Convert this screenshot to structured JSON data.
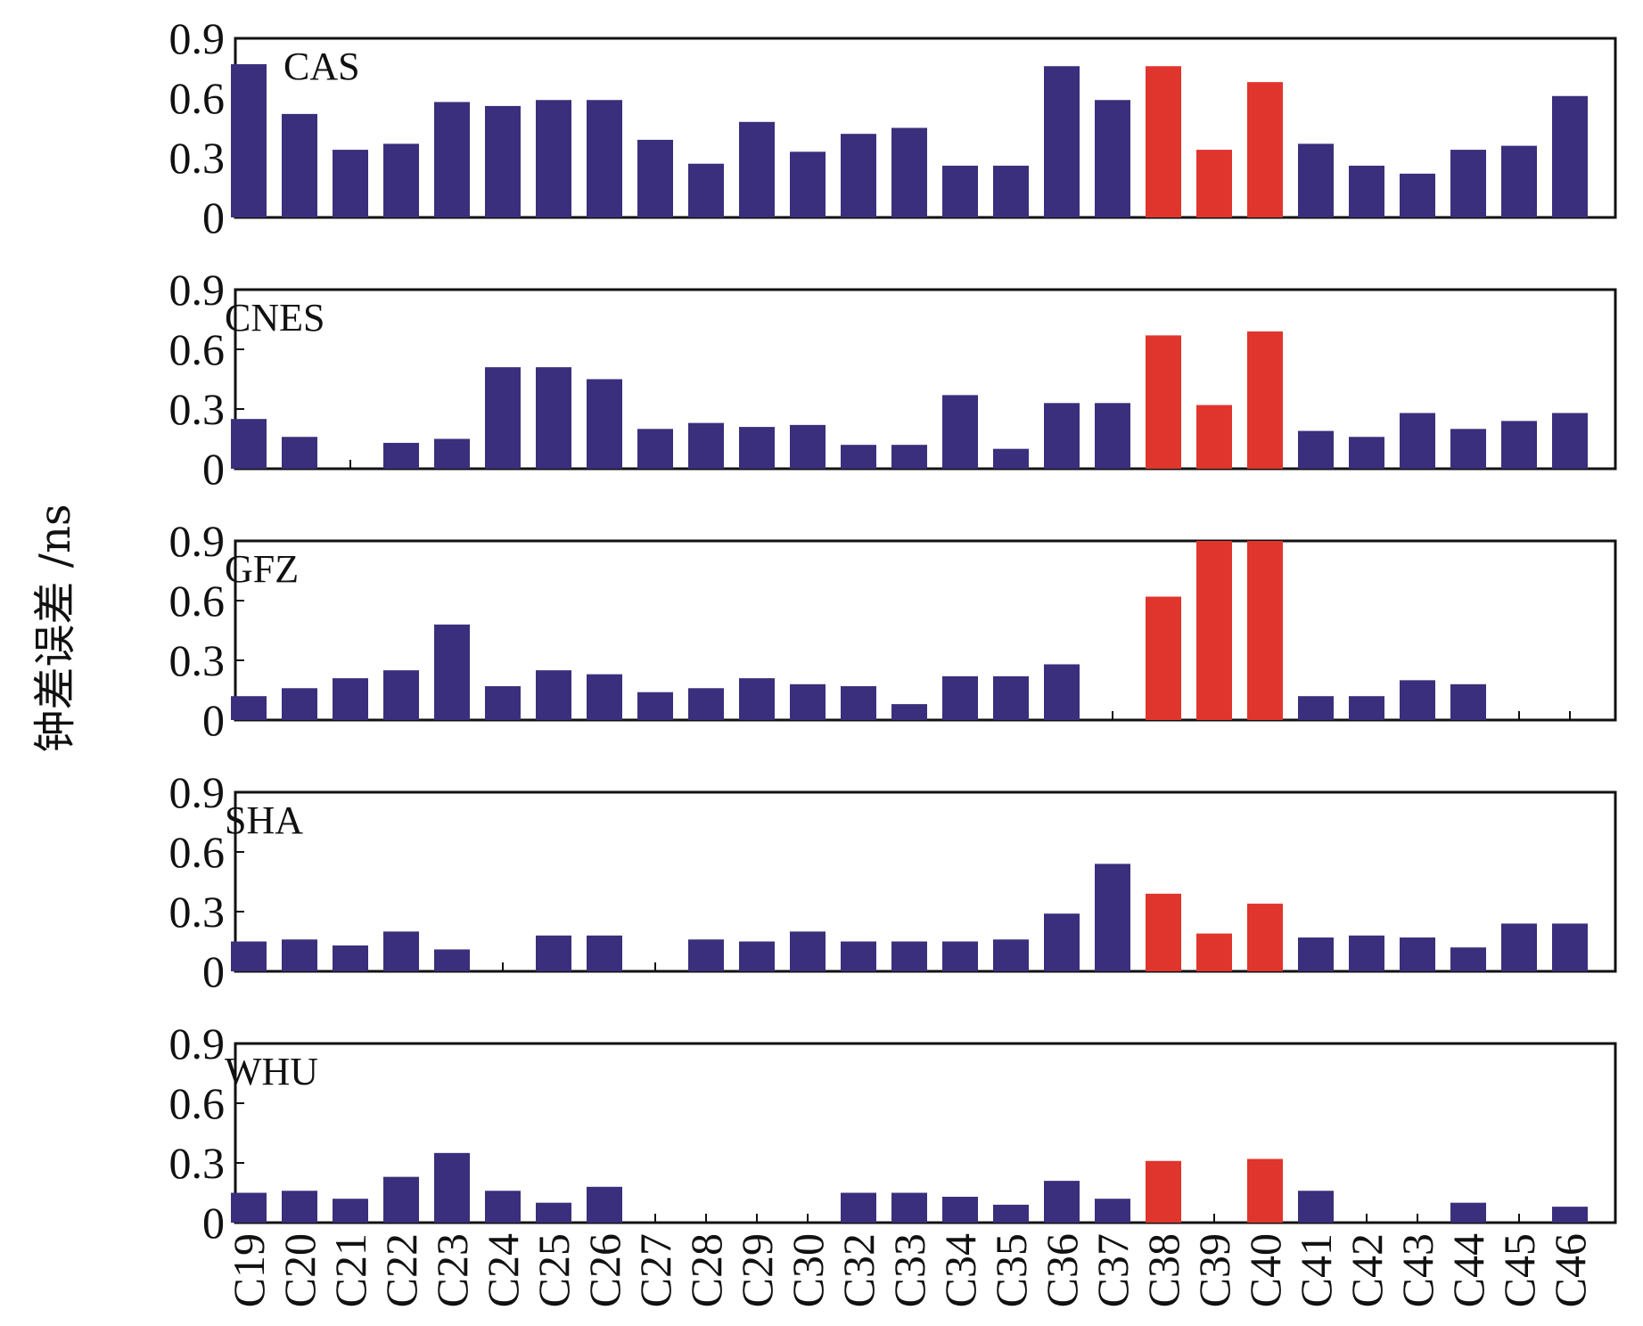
{
  "chart_data": {
    "type": "bar",
    "ylabel": "钟差误差 /ns",
    "ylim": [
      0,
      0.9
    ],
    "yticks": [
      "0",
      "0.3",
      "0.6",
      "0.9"
    ],
    "colors": {
      "normal": "#3a2f7c",
      "highlight": "#e0352d"
    },
    "highlight_categories": [
      "C38",
      "C39",
      "C40"
    ],
    "categories": [
      "C19",
      "C20",
      "C21",
      "C22",
      "C23",
      "C24",
      "C25",
      "C26",
      "C27",
      "C28",
      "C29",
      "C30",
      "C32",
      "C33",
      "C34",
      "C35",
      "C36",
      "C37",
      "C38",
      "C39",
      "C40",
      "C41",
      "C42",
      "C43",
      "C44",
      "C45",
      "C46"
    ],
    "panels": [
      {
        "name": "CAS",
        "values": [
          0.77,
          0.52,
          0.34,
          0.37,
          0.58,
          0.56,
          0.59,
          0.59,
          0.39,
          0.27,
          0.48,
          0.33,
          0.42,
          0.45,
          0.26,
          0.26,
          0.76,
          0.59,
          0.76,
          0.34,
          0.68,
          0.37,
          0.26,
          0.22,
          0.34,
          0.36,
          0.61
        ]
      },
      {
        "name": "CNES",
        "values": [
          0.25,
          0.16,
          0,
          0.13,
          0.15,
          0.51,
          0.51,
          0.45,
          0.2,
          0.23,
          0.21,
          0.22,
          0.12,
          0.12,
          0.37,
          0.1,
          0.33,
          0.33,
          0.67,
          0.32,
          0.69,
          0.19,
          0.16,
          0.28,
          0.2,
          0.24,
          0.28
        ]
      },
      {
        "name": "GFZ",
        "values": [
          0.12,
          0.16,
          0.21,
          0.25,
          0.48,
          0.17,
          0.25,
          0.23,
          0.14,
          0.16,
          0.21,
          0.18,
          0.17,
          0.08,
          0.22,
          0.22,
          0.28,
          0,
          0.62,
          0.9,
          0.9,
          0.12,
          0.12,
          0.2,
          0.18,
          0,
          0
        ]
      },
      {
        "name": "SHA",
        "values": [
          0.15,
          0.16,
          0.13,
          0.2,
          0.11,
          0,
          0.18,
          0.18,
          0,
          0.16,
          0.15,
          0.2,
          0.15,
          0.15,
          0.15,
          0.16,
          0.29,
          0.54,
          0.39,
          0.19,
          0.34,
          0.17,
          0.18,
          0.17,
          0.12,
          0.24,
          0.24
        ]
      },
      {
        "name": "WHU",
        "values": [
          0.15,
          0.16,
          0.12,
          0.23,
          0.35,
          0.16,
          0.1,
          0.18,
          0,
          0,
          0,
          0,
          0.15,
          0.15,
          0.13,
          0.09,
          0.21,
          0.12,
          0.31,
          0,
          0.32,
          0.16,
          0,
          0,
          0.1,
          0,
          0.08
        ]
      }
    ]
  }
}
